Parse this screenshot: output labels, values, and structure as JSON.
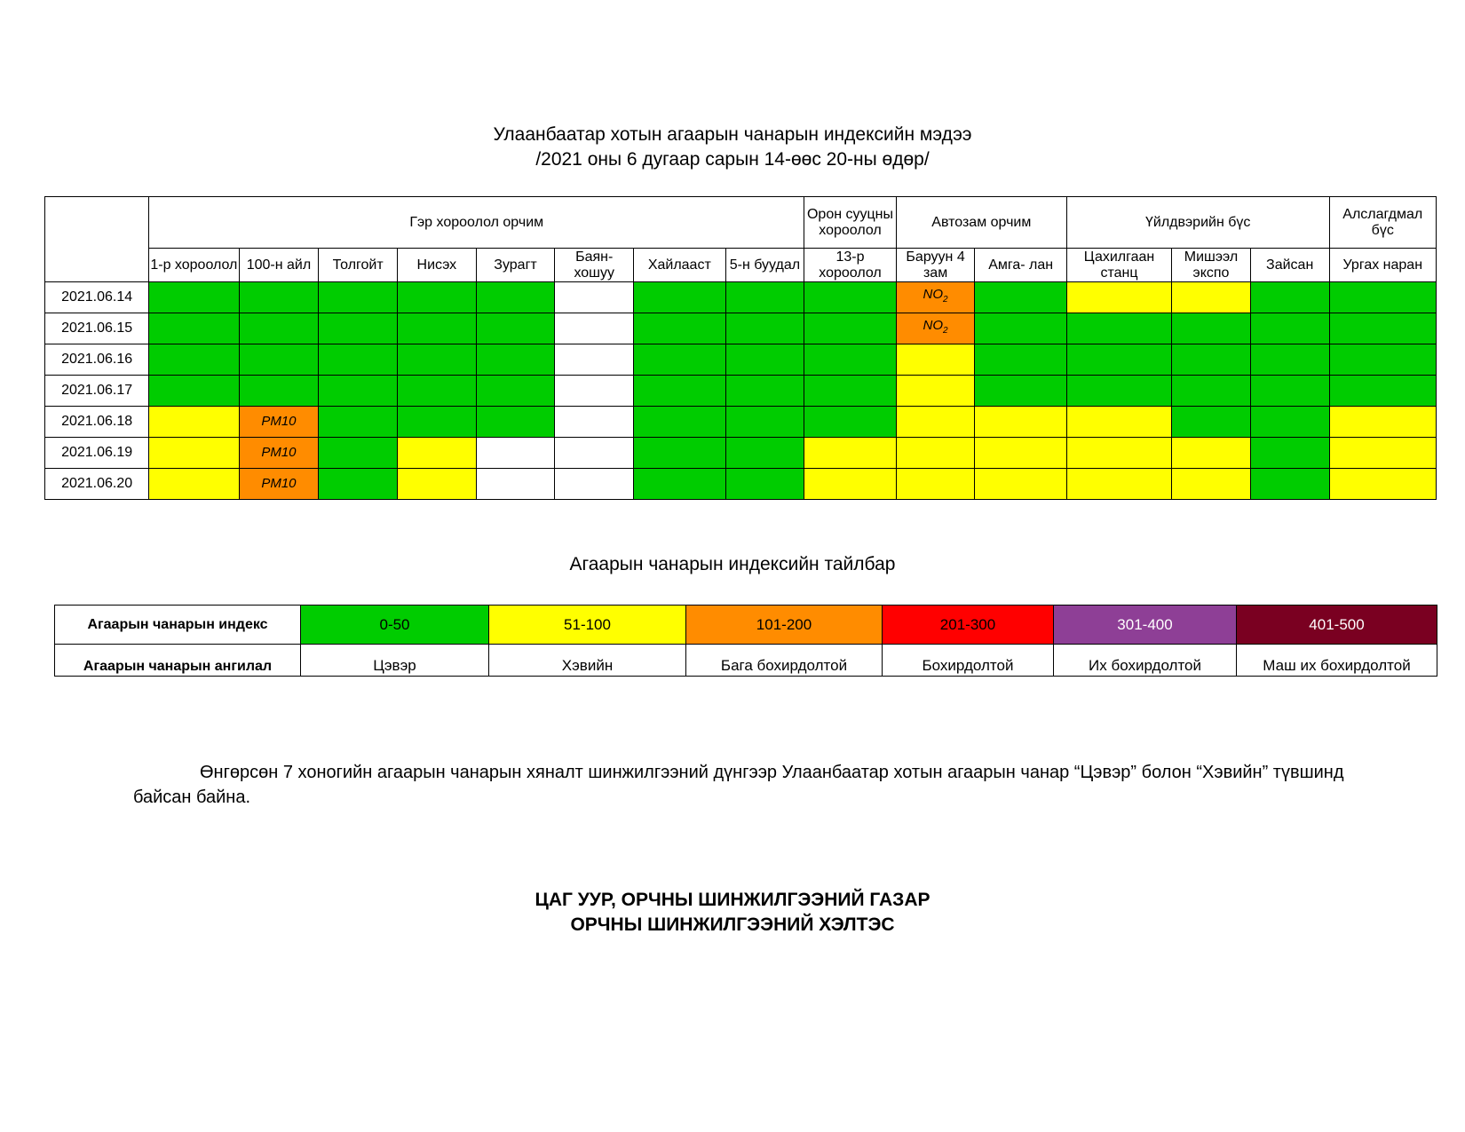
{
  "title": {
    "line1": "Улаанбаатар хотын агаарын чанарын индексийн мэдээ",
    "line2": "/2021 оны 6 дугаар сарын 14-өөс 20-ны өдөр/"
  },
  "colors": {
    "green": "#00cc00",
    "yellow": "#ffff00",
    "orange": "#ff8c00",
    "white": "#ffffff"
  },
  "groups": [
    {
      "label": "Гэр хороолол орчим",
      "span": 8
    },
    {
      "label": "Орон сууцны хороолол",
      "span": 1
    },
    {
      "label": "Автозам орчим",
      "span": 2
    },
    {
      "label": "Үйлдвэрийн бүс",
      "span": 3
    },
    {
      "label": "Алслагдмал бүс",
      "span": 1
    }
  ],
  "stations": [
    "1-р хороолол",
    "100-н айл",
    "Толгойт",
    "Нисэх",
    "Зурагт",
    "Баян- хошуу",
    "Хайлааст",
    "5-н буудал",
    "13-р хороолол",
    "Баруун 4 зам",
    "Амга- лан",
    "Цахилгаан станц",
    "Мишээл экспо",
    "Зайсан",
    "Ургах наран"
  ],
  "rows": [
    {
      "date": "2021.06.14",
      "cells": [
        {
          "c": "green"
        },
        {
          "c": "green"
        },
        {
          "c": "green"
        },
        {
          "c": "green"
        },
        {
          "c": "green"
        },
        {
          "c": "white"
        },
        {
          "c": "green"
        },
        {
          "c": "green"
        },
        {
          "c": "green"
        },
        {
          "c": "orange",
          "p": "NO",
          "s": "2"
        },
        {
          "c": "green"
        },
        {
          "c": "yellow"
        },
        {
          "c": "yellow"
        },
        {
          "c": "green"
        },
        {
          "c": "green"
        }
      ]
    },
    {
      "date": "2021.06.15",
      "cells": [
        {
          "c": "green"
        },
        {
          "c": "green"
        },
        {
          "c": "green"
        },
        {
          "c": "green"
        },
        {
          "c": "green"
        },
        {
          "c": "white"
        },
        {
          "c": "green"
        },
        {
          "c": "green"
        },
        {
          "c": "green"
        },
        {
          "c": "orange",
          "p": "NO",
          "s": "2"
        },
        {
          "c": "green"
        },
        {
          "c": "green"
        },
        {
          "c": "green"
        },
        {
          "c": "green"
        },
        {
          "c": "green"
        }
      ]
    },
    {
      "date": "2021.06.16",
      "cells": [
        {
          "c": "green"
        },
        {
          "c": "green"
        },
        {
          "c": "green"
        },
        {
          "c": "green"
        },
        {
          "c": "green"
        },
        {
          "c": "white"
        },
        {
          "c": "green"
        },
        {
          "c": "green"
        },
        {
          "c": "green"
        },
        {
          "c": "yellow"
        },
        {
          "c": "green"
        },
        {
          "c": "green"
        },
        {
          "c": "green"
        },
        {
          "c": "green"
        },
        {
          "c": "green"
        }
      ]
    },
    {
      "date": "2021.06.17",
      "cells": [
        {
          "c": "green"
        },
        {
          "c": "green"
        },
        {
          "c": "green"
        },
        {
          "c": "green"
        },
        {
          "c": "green"
        },
        {
          "c": "white"
        },
        {
          "c": "green"
        },
        {
          "c": "green"
        },
        {
          "c": "green"
        },
        {
          "c": "yellow"
        },
        {
          "c": "green"
        },
        {
          "c": "green"
        },
        {
          "c": "green"
        },
        {
          "c": "green"
        },
        {
          "c": "green"
        }
      ]
    },
    {
      "date": "2021.06.18",
      "cells": [
        {
          "c": "yellow"
        },
        {
          "c": "orange",
          "p": "PM10"
        },
        {
          "c": "green"
        },
        {
          "c": "green"
        },
        {
          "c": "green"
        },
        {
          "c": "white"
        },
        {
          "c": "green"
        },
        {
          "c": "green"
        },
        {
          "c": "green"
        },
        {
          "c": "yellow"
        },
        {
          "c": "yellow"
        },
        {
          "c": "yellow"
        },
        {
          "c": "green"
        },
        {
          "c": "green"
        },
        {
          "c": "yellow"
        }
      ]
    },
    {
      "date": "2021.06.19",
      "cells": [
        {
          "c": "yellow"
        },
        {
          "c": "orange",
          "p": "PM10"
        },
        {
          "c": "green"
        },
        {
          "c": "yellow"
        },
        {
          "c": "white"
        },
        {
          "c": "white"
        },
        {
          "c": "green"
        },
        {
          "c": "green"
        },
        {
          "c": "yellow"
        },
        {
          "c": "yellow"
        },
        {
          "c": "yellow"
        },
        {
          "c": "yellow"
        },
        {
          "c": "yellow"
        },
        {
          "c": "green"
        },
        {
          "c": "yellow"
        }
      ]
    },
    {
      "date": "2021.06.20",
      "cells": [
        {
          "c": "yellow"
        },
        {
          "c": "orange",
          "p": "PM10"
        },
        {
          "c": "green"
        },
        {
          "c": "yellow"
        },
        {
          "c": "white"
        },
        {
          "c": "white"
        },
        {
          "c": "green"
        },
        {
          "c": "green"
        },
        {
          "c": "yellow"
        },
        {
          "c": "yellow"
        },
        {
          "c": "yellow"
        },
        {
          "c": "yellow"
        },
        {
          "c": "yellow"
        },
        {
          "c": "green"
        },
        {
          "c": "yellow"
        }
      ]
    }
  ],
  "legend": {
    "title": "Агаарын чанарын индексийн тайлбар",
    "index_label": "Агаарын чанарын индекс",
    "category_label": "Агаарын чанарын ангилал",
    "levels": [
      {
        "range": "0-50",
        "name": "Цэвэр",
        "color": "#00cc00",
        "text_color": "#000000"
      },
      {
        "range": "51-100",
        "name": "Хэвийн",
        "color": "#ffff00",
        "text_color": "#000000"
      },
      {
        "range": "101-200",
        "name": "Бага бохирдолтой",
        "color": "#ff8c00",
        "text_color": "#000000"
      },
      {
        "range": "201-300",
        "name": "Бохирдолтой",
        "color": "#ff0000",
        "text_color": "#000000"
      },
      {
        "range": "301-400",
        "name": "Их бохирдолтой",
        "color": "#8e3f96",
        "text_color": "#ffffff"
      },
      {
        "range": "401-500",
        "name": "Маш их бохирдолтой",
        "color": "#7a0021",
        "text_color": "#ffffff"
      }
    ]
  },
  "summary": "Өнгөрсөн 7 хоногийн агаарын чанарын хяналт шинжилгээний дүнгээр Улаанбаатар хотын агаарын чанар “Цэвэр” болон “Хэвийн” түвшинд байсан байна.",
  "footer": {
    "line1": "ЦАГ УУР, ОРЧНЫ ШИНЖИЛГЭЭНИЙ ГАЗАР",
    "line2": "ОРЧНЫ ШИНЖИЛГЭЭНИЙ ХЭЛТЭС"
  }
}
